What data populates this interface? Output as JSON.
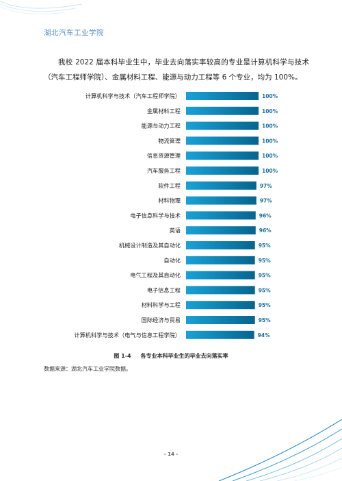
{
  "header": {
    "title": "湖北汽车工业学院"
  },
  "intro": {
    "text": "我校 2022 届本科毕业生中，毕业去向落实率较高的专业是计算机科学与技术（汽车工程师学院）、金属材料工程、能源与动力工程等 6 个专业，均为 100%。"
  },
  "chart_data": {
    "type": "bar",
    "orientation": "horizontal",
    "categories": [
      "计算机科学与技术（汽车工程师学院）",
      "金属材料工程",
      "能源与动力工程",
      "物流管理",
      "信息资源管理",
      "汽车服务工程",
      "软件工程",
      "材料物理",
      "电子信息科学与技术",
      "英语",
      "机械设计制造及其自动化",
      "自动化",
      "电气工程及其自动化",
      "电子信息工程",
      "材料科学与工程",
      "国际经济与贸易",
      "计算机科学与技术（电气与信息工程学院）"
    ],
    "values": [
      100,
      100,
      100,
      100,
      100,
      100,
      97,
      97,
      96,
      96,
      95,
      95,
      95,
      95,
      95,
      95,
      94
    ],
    "value_labels": [
      "100%",
      "100%",
      "100%",
      "100%",
      "100%",
      "100%",
      "97%",
      "97%",
      "96%",
      "96%",
      "95%",
      "95%",
      "95%",
      "95%",
      "95%",
      "95%",
      "94%"
    ],
    "bar_gradient": [
      "#1aa1d6",
      "#05658f"
    ],
    "label_color": "#1c6f9e"
  },
  "caption": {
    "figure_no": "图 1-4",
    "text": "各专业本科毕业生的毕业去向落实率"
  },
  "source": {
    "text": "数据来源：湖北汽车工业学院数据。"
  },
  "footer": {
    "page": "- 14 -"
  }
}
